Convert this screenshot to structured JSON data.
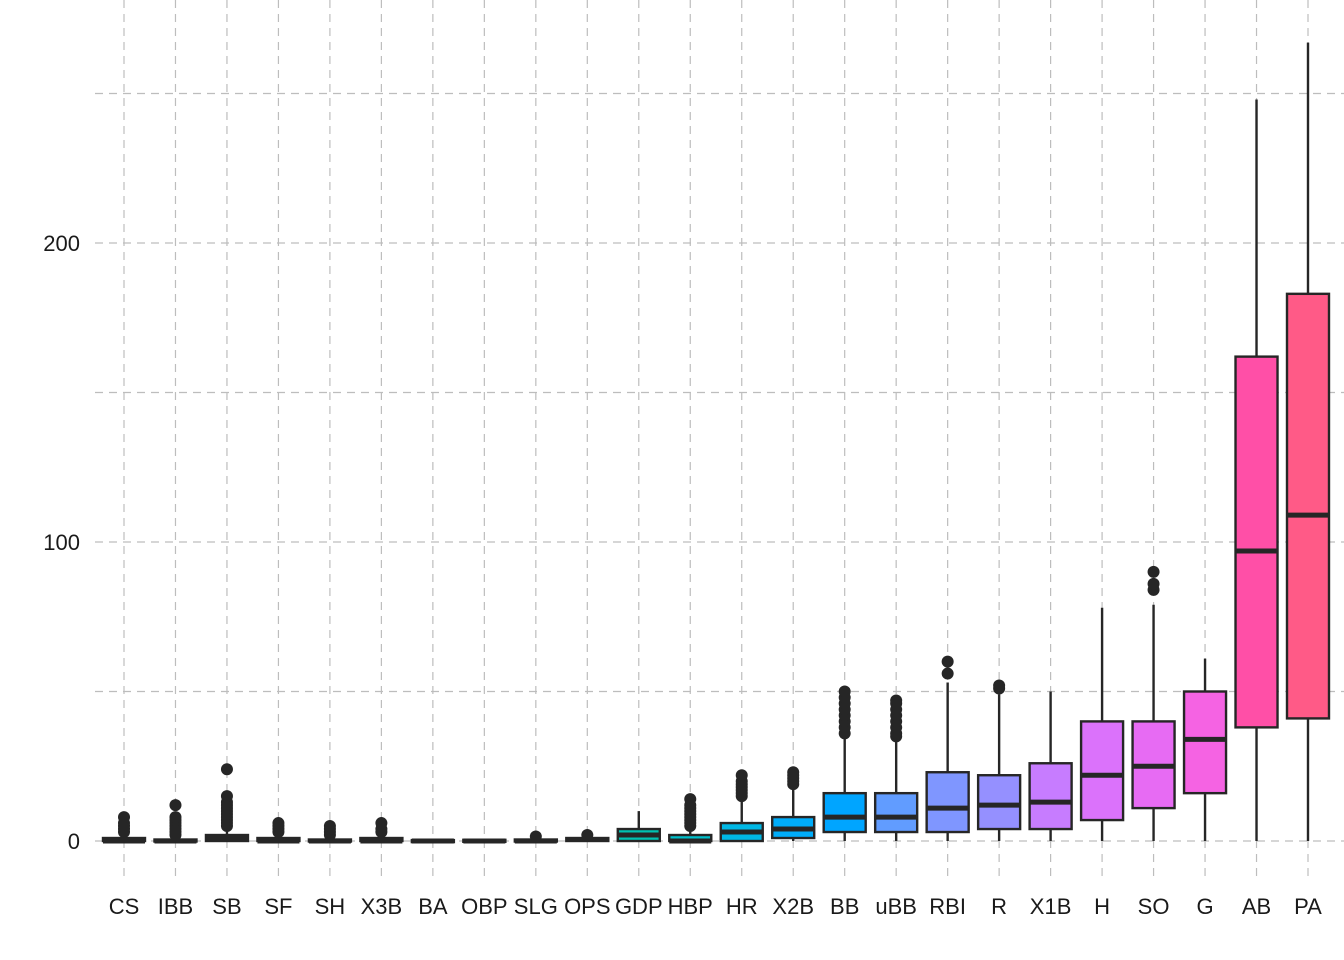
{
  "chart_data": {
    "type": "boxplot",
    "title": "",
    "xlabel": "",
    "ylabel": "",
    "ylim": [
      -15,
      278
    ],
    "yticks": [
      0,
      100,
      200
    ],
    "grid": true,
    "legend": "none",
    "series": [
      {
        "category": "CS",
        "color": "#F8766D",
        "min": 0,
        "q1": 0,
        "median": 0,
        "q3": 1,
        "max": 2,
        "outliers": [
          3,
          4,
          5,
          6,
          8
        ]
      },
      {
        "category": "IBB",
        "color": "#EC8239",
        "min": 0,
        "q1": 0,
        "median": 0,
        "q3": 0.5,
        "max": 1,
        "outliers": [
          2,
          3,
          4,
          5,
          6,
          7,
          8,
          12
        ]
      },
      {
        "category": "SB",
        "color": "#DB8E00",
        "min": 0,
        "q1": 0,
        "median": 1,
        "q3": 2,
        "max": 4,
        "outliers": [
          5,
          6,
          7,
          8,
          9,
          10,
          11,
          12,
          13,
          15,
          24
        ]
      },
      {
        "category": "SF",
        "color": "#C79800",
        "min": 0,
        "q1": 0,
        "median": 0,
        "q3": 1,
        "max": 2,
        "outliers": [
          3,
          4,
          5,
          6
        ]
      },
      {
        "category": "SH",
        "color": "#AEA200",
        "min": 0,
        "q1": 0,
        "median": 0,
        "q3": 0.5,
        "max": 1,
        "outliers": [
          2,
          3,
          4,
          5
        ]
      },
      {
        "category": "X3B",
        "color": "#8FAA00",
        "min": 0,
        "q1": 0,
        "median": 0,
        "q3": 1,
        "max": 2,
        "outliers": [
          3,
          4,
          6
        ]
      },
      {
        "category": "BA",
        "color": "#64B200",
        "min": 0,
        "q1": 0,
        "median": 0,
        "q3": 0.3,
        "max": 0.5,
        "outliers": []
      },
      {
        "category": "OBP",
        "color": "#00B81B",
        "min": 0,
        "q1": 0,
        "median": 0,
        "q3": 0.4,
        "max": 0.6,
        "outliers": []
      },
      {
        "category": "SLG",
        "color": "#00BD5C",
        "min": 0,
        "q1": 0,
        "median": 0,
        "q3": 0.5,
        "max": 1,
        "outliers": [
          1.5
        ]
      },
      {
        "category": "OPS",
        "color": "#00C08E",
        "min": 0,
        "q1": 0,
        "median": 0.5,
        "q3": 1,
        "max": 1.5,
        "outliers": [
          2
        ]
      },
      {
        "category": "GDP",
        "color": "#00C1B2",
        "min": 0,
        "q1": 0,
        "median": 2,
        "q3": 4,
        "max": 10,
        "outliers": []
      },
      {
        "category": "HBP",
        "color": "#00BFCA",
        "min": 0,
        "q1": 0,
        "median": 0,
        "q3": 2,
        "max": 4,
        "outliers": [
          5,
          6,
          7,
          8,
          9,
          10,
          11,
          12,
          14
        ]
      },
      {
        "category": "HR",
        "color": "#00B8E5",
        "min": 0,
        "q1": 0,
        "median": 3,
        "q3": 6,
        "max": 14,
        "outliers": [
          15,
          16,
          17,
          18,
          19,
          20,
          22
        ]
      },
      {
        "category": "X2B",
        "color": "#00ADFA",
        "min": 0,
        "q1": 1,
        "median": 4,
        "q3": 8,
        "max": 18,
        "outliers": [
          19,
          20,
          21,
          22,
          23
        ]
      },
      {
        "category": "BB",
        "color": "#00A5FF",
        "min": 0,
        "q1": 3,
        "median": 8,
        "q3": 16,
        "max": 35,
        "outliers": [
          36,
          38,
          40,
          42,
          44,
          46,
          48,
          50
        ]
      },
      {
        "category": "uBB",
        "color": "#619CFF",
        "min": 0,
        "q1": 3,
        "median": 8,
        "q3": 16,
        "max": 34,
        "outliers": [
          35,
          36,
          38,
          40,
          42,
          44,
          46,
          47
        ]
      },
      {
        "category": "RBI",
        "color": "#7F96FF",
        "min": 0,
        "q1": 3,
        "median": 11,
        "q3": 23,
        "max": 53,
        "outliers": [
          56,
          60
        ]
      },
      {
        "category": "R",
        "color": "#9590FF",
        "min": 0,
        "q1": 4,
        "median": 12,
        "q3": 22,
        "max": 49,
        "outliers": [
          51,
          52
        ]
      },
      {
        "category": "X1B",
        "color": "#C77CFF",
        "min": 0,
        "q1": 4,
        "median": 13,
        "q3": 26,
        "max": 50,
        "outliers": []
      },
      {
        "category": "H",
        "color": "#DB72FB",
        "min": 0,
        "q1": 7,
        "median": 22,
        "q3": 40,
        "max": 78,
        "outliers": []
      },
      {
        "category": "SO",
        "color": "#E76BF3",
        "min": 0,
        "q1": 11,
        "median": 25,
        "q3": 40,
        "max": 79,
        "outliers": [
          84,
          86,
          90
        ]
      },
      {
        "category": "G",
        "color": "#F563E3",
        "min": 0,
        "q1": 16,
        "median": 34,
        "q3": 50,
        "max": 61,
        "outliers": []
      },
      {
        "category": "AB",
        "color": "#FF4FA7",
        "min": 0,
        "q1": 38,
        "median": 97,
        "q3": 162,
        "max": 248,
        "outliers": []
      },
      {
        "category": "PA",
        "color": "#FF5A87",
        "min": 0,
        "q1": 41,
        "median": 109,
        "q3": 183,
        "max": 267,
        "outliers": []
      }
    ]
  }
}
